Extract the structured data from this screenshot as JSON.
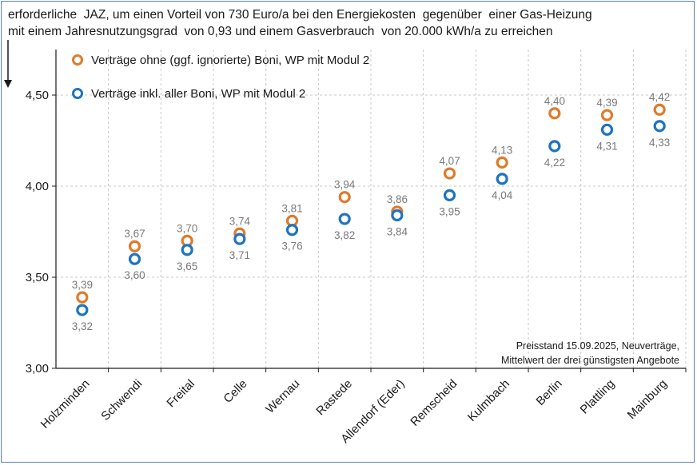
{
  "header": {
    "line1": "erforderliche  JAZ, um einen Vorteil von 730 Euro/a bei den Energiekosten  gegenüber  einer Gas-Heizung",
    "line2": "mit einem Jahresnutzungsgrad  von 0,93 und einem Gasverbrauch  von 20.000 kWh/a zu erreichen"
  },
  "note": {
    "line1": "Preisstand 15.09.2025, Neuverträge,",
    "line2": "Mittelwert  der drei günstigsten Angebote"
  },
  "colors": {
    "orange": "#e07b2a",
    "blue": "#1f74c0",
    "grid": "#c8c8c8",
    "axis": "#1a1a1a"
  },
  "chart_data": {
    "type": "scatter",
    "categories": [
      "Holzminden",
      "Schwendi",
      "Freital",
      "Celle",
      "Wernau",
      "Rastede",
      "Allendorf (Eder)",
      "Remscheid",
      "Kulmbach",
      "Berlin",
      "Plattling",
      "Mainburg"
    ],
    "ylim": [
      3.0,
      4.75
    ],
    "yticks": [
      "3,00",
      "3,50",
      "4,00",
      "4,50"
    ],
    "ytick_values": [
      3.0,
      3.5,
      4.0,
      4.5
    ],
    "grid": true,
    "legend_position": "top-left",
    "series": [
      {
        "name": "Verträge ohne (ggf. ignorierte) Boni, WP mit Modul 2",
        "color": "#e07b2a",
        "values": [
          3.39,
          3.67,
          3.7,
          3.74,
          3.81,
          3.94,
          3.86,
          4.07,
          4.13,
          4.4,
          4.39,
          4.42
        ],
        "labels": [
          "3,39",
          "3,67",
          "3,70",
          "3,74",
          "3,81",
          "3,94",
          "3,86",
          "4,07",
          "4,13",
          "4,40",
          "4,39",
          "4,42"
        ]
      },
      {
        "name": "Verträge inkl. aller Boni, WP mit Modul 2",
        "color": "#1f74c0",
        "values": [
          3.32,
          3.6,
          3.65,
          3.71,
          3.76,
          3.82,
          3.84,
          3.95,
          4.04,
          4.22,
          4.31,
          4.33
        ],
        "labels": [
          "3,32",
          "3,60",
          "3,65",
          "3,71",
          "3,76",
          "3,82",
          "3,84",
          "3,95",
          "4,04",
          "4,22",
          "4,31",
          "4,33"
        ]
      }
    ]
  }
}
